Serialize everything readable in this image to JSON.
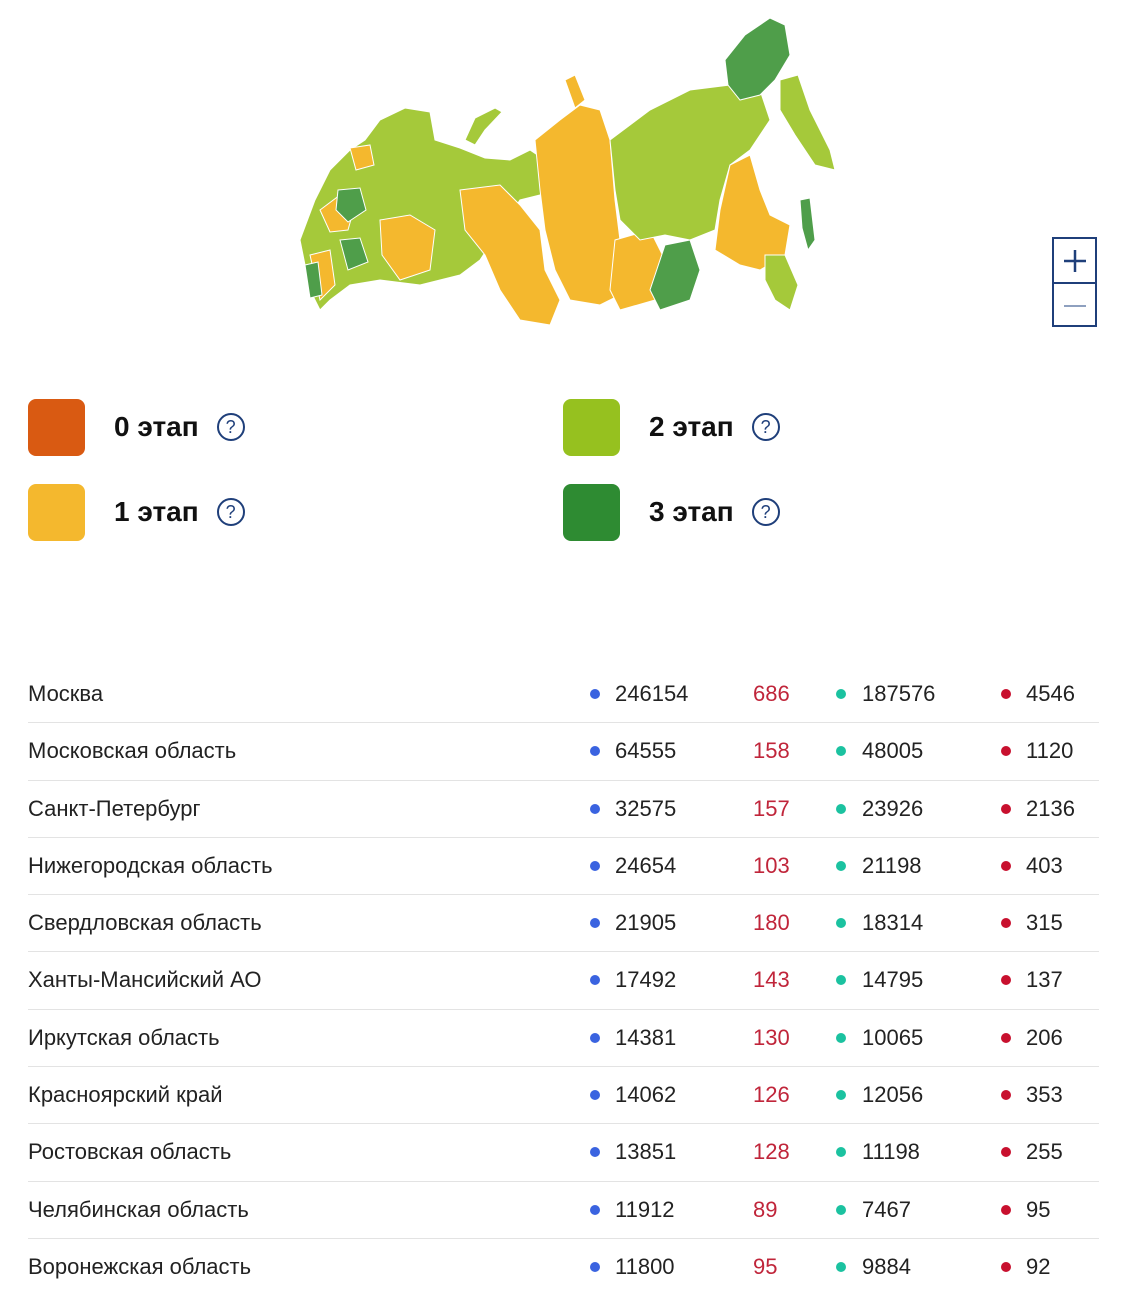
{
  "map": {
    "region_colors": {
      "stage0": "#d95a12",
      "stage1": "#f4b82e",
      "stage2": "#a5c93a",
      "stage3": "#4f9e4a"
    }
  },
  "zoom": {
    "in_icon": "plus-icon",
    "out_icon": "minus-icon"
  },
  "legend": {
    "items": [
      {
        "label": "0 этап",
        "color": "#d95a12",
        "help": "?"
      },
      {
        "label": "1 этап",
        "color": "#f4b82e",
        "help": "?"
      },
      {
        "label": "2 этап",
        "color": "#96c11f",
        "help": "?"
      },
      {
        "label": "3 этап",
        "color": "#2e8b32",
        "help": "?"
      }
    ]
  },
  "table": {
    "rows": [
      {
        "region": "Москва",
        "cases": "246154",
        "new": "686",
        "recovered": "187576",
        "deaths": "4546"
      },
      {
        "region": "Московская область",
        "cases": "64555",
        "new": "158",
        "recovered": "48005",
        "deaths": "1120"
      },
      {
        "region": "Санкт-Петербург",
        "cases": "32575",
        "new": "157",
        "recovered": "23926",
        "deaths": "2136"
      },
      {
        "region": "Нижегородская область",
        "cases": "24654",
        "new": "103",
        "recovered": "21198",
        "deaths": "403"
      },
      {
        "region": "Свердловская область",
        "cases": "21905",
        "new": "180",
        "recovered": "18314",
        "deaths": "315"
      },
      {
        "region": "Ханты-Мансийский АО",
        "cases": "17492",
        "new": "143",
        "recovered": "14795",
        "deaths": "137"
      },
      {
        "region": "Иркутская область",
        "cases": "14381",
        "new": "130",
        "recovered": "10065",
        "deaths": "206"
      },
      {
        "region": "Красноярский край",
        "cases": "14062",
        "new": "126",
        "recovered": "12056",
        "deaths": "353"
      },
      {
        "region": "Ростовская область",
        "cases": "13851",
        "new": "128",
        "recovered": "11198",
        "deaths": "255"
      },
      {
        "region": "Челябинская область",
        "cases": "11912",
        "new": "89",
        "recovered": "7467",
        "deaths": "95"
      },
      {
        "region": "Воронежская область",
        "cases": "11800",
        "new": "95",
        "recovered": "9884",
        "deaths": "92"
      }
    ],
    "colors": {
      "cases_dot": "#3a63e0",
      "recovered_dot": "#1bc2a0",
      "deaths_dot": "#c8102e",
      "new_text": "#c0253a"
    }
  }
}
